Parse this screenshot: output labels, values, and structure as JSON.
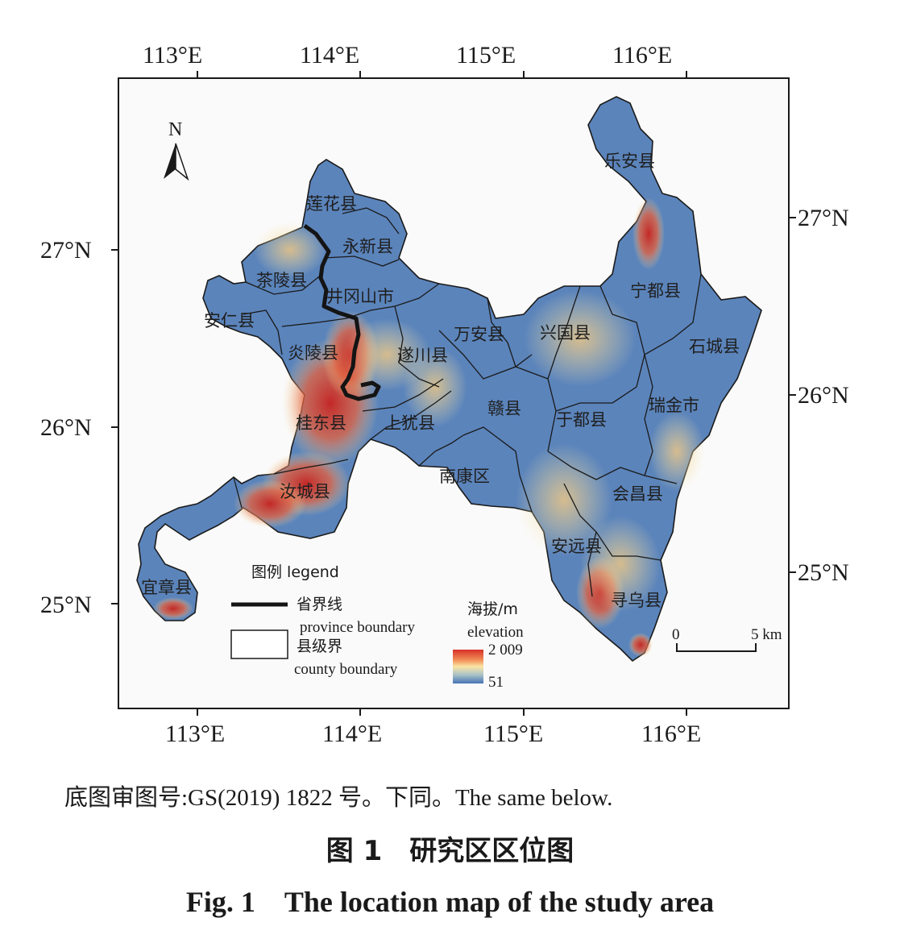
{
  "axes": {
    "top_longitude_labels": [
      "113°E",
      "114°E",
      "115°E",
      "116°E"
    ],
    "bottom_longitude_labels": [
      "113°E",
      "114°E",
      "115°E",
      "116°E"
    ],
    "left_latitude_labels": [
      "27°N",
      "26°N",
      "25°N"
    ],
    "right_latitude_labels": [
      "27°N",
      "26°N",
      "25°N"
    ]
  },
  "north_arrow": {
    "label": "N"
  },
  "counties": [
    "乐安县",
    "莲花县",
    "永新县",
    "茶陵县",
    "井冈山市",
    "宁都县",
    "安仁县",
    "兴国县",
    "万安县",
    "石城县",
    "炎陵县",
    "遂川县",
    "瑞金市",
    "赣县",
    "桂东县",
    "上犹县",
    "于都县",
    "南康区",
    "汝城县",
    "会昌县",
    "安远县",
    "宜章县",
    "寻乌县"
  ],
  "legend": {
    "title": "图例 legend",
    "province_boundary_cn": "省界线",
    "province_boundary_en": "province boundary",
    "county_boundary_cn": "县级界",
    "county_boundary_en": "county boundary",
    "elevation_title_cn": "海拔/m",
    "elevation_title_en": "elevation",
    "elevation_max": "2 009",
    "elevation_min": "51",
    "ramp_colors": [
      "#d7302a",
      "#f08c56",
      "#fbe6a4",
      "#a7c1c7",
      "#4673b5"
    ]
  },
  "scale_bar": {
    "start": "0",
    "end": "5 km"
  },
  "caption": {
    "note": "底图审图号:GS(2019) 1822 号。下同。The same below.",
    "title_cn": "图 1　研究区区位图",
    "title_en": "Fig. 1　The location map of the study area"
  },
  "colors": {
    "terrain_low": "#4a78b8",
    "terrain_mid": "#f3e6a6",
    "terrain_high": "#d42f2a",
    "boundary": "#1a1a1a"
  }
}
